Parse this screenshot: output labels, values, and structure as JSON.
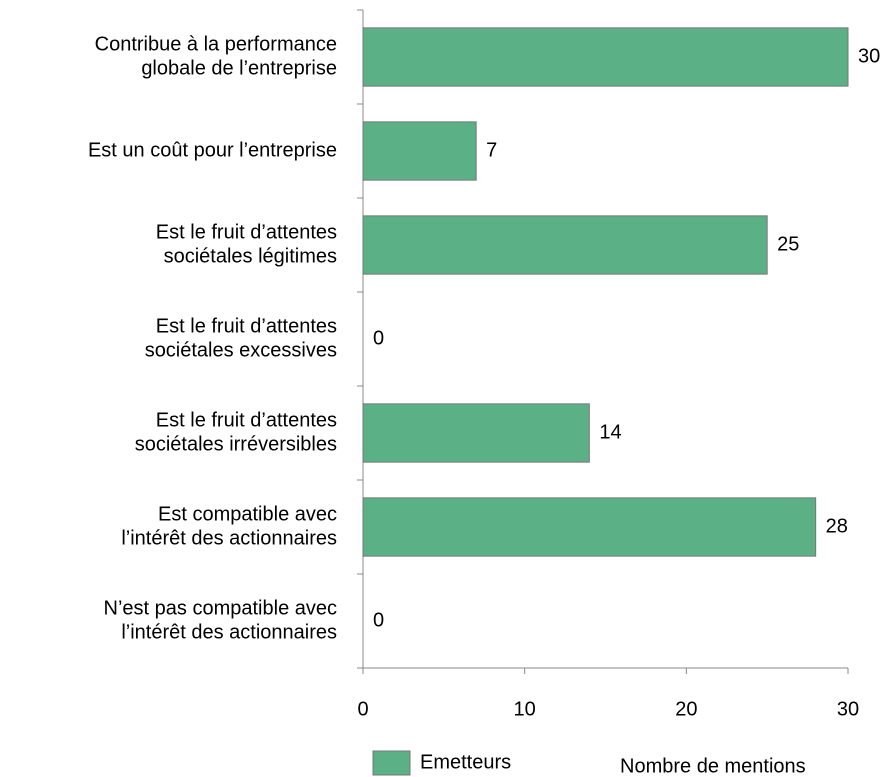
{
  "chart_data": {
    "type": "bar",
    "orientation": "horizontal",
    "categories": [
      [
        "Contribue à la performance",
        "globale de l’entreprise"
      ],
      [
        "Est un coût pour l’entreprise"
      ],
      [
        "Est le fruit d’attentes",
        "sociétales légitimes"
      ],
      [
        "Est le fruit d’attentes",
        "sociétales excessives"
      ],
      [
        "Est le fruit d’attentes",
        "sociétales irréversibles"
      ],
      [
        "Est compatible avec",
        "l’intérêt des actionnaires"
      ],
      [
        "N’est pas compatible avec",
        "l’intérêt des actionnaires"
      ]
    ],
    "series": [
      {
        "name": "Emetteurs",
        "color": "#5cb085",
        "values": [
          30,
          7,
          25,
          0,
          14,
          28,
          0
        ]
      }
    ],
    "xlim": [
      0,
      30
    ],
    "xticks": [
      0,
      10,
      20,
      30
    ],
    "xlabel": "Nombre de mentions"
  }
}
